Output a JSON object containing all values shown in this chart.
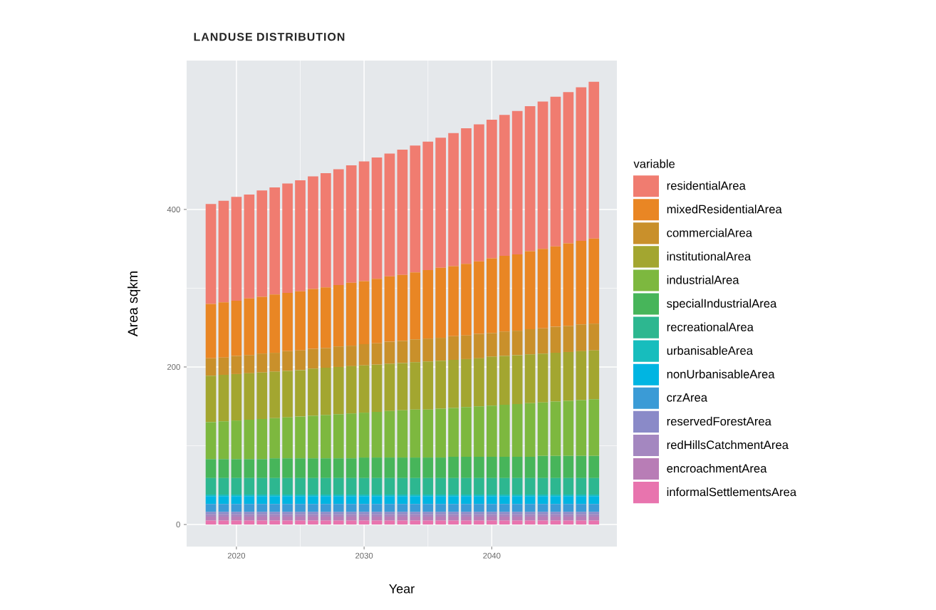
{
  "chart_data": {
    "type": "bar",
    "title": "LANDUSE DISTRIBUTION",
    "xlabel": "Year",
    "ylabel": "Area sqkm",
    "legend_title": "variable",
    "x": [
      2018,
      2019,
      2020,
      2021,
      2022,
      2023,
      2024,
      2025,
      2026,
      2027,
      2028,
      2029,
      2030,
      2031,
      2032,
      2033,
      2034,
      2035,
      2036,
      2037,
      2038,
      2039,
      2040,
      2041,
      2042,
      2043,
      2044,
      2045,
      2046,
      2047,
      2048
    ],
    "stacked": true,
    "series": [
      {
        "name": "informalSettlementsArea",
        "color": "#e874ae",
        "values": [
          5,
          5,
          5,
          5,
          5,
          5,
          5,
          5,
          5,
          5,
          5,
          5,
          5,
          5,
          5,
          5,
          5,
          5,
          5,
          5,
          5,
          5,
          5,
          5,
          5,
          5,
          5,
          5,
          5,
          5,
          5
        ]
      },
      {
        "name": "encroachmentArea",
        "color": "#b87db6",
        "values": [
          5,
          5,
          5,
          5,
          5,
          5,
          5,
          5,
          5,
          5,
          5,
          5,
          5,
          5,
          5,
          5,
          5,
          5,
          5,
          5,
          5,
          5,
          5,
          5,
          5,
          5,
          5,
          5,
          5,
          5,
          5
        ]
      },
      {
        "name": "redHillsCatchmentArea",
        "color": "#a487c0",
        "values": [
          3,
          3,
          3,
          3,
          3,
          3,
          3,
          3,
          3,
          3,
          3,
          3,
          3,
          3,
          3,
          3,
          3,
          3,
          3,
          3,
          3,
          3,
          3,
          3,
          3,
          3,
          3,
          3,
          3,
          3,
          3
        ]
      },
      {
        "name": "reservedForestArea",
        "color": "#8a8ac8",
        "values": [
          3,
          3,
          3,
          3,
          3,
          3,
          3,
          3,
          3,
          3,
          3,
          3,
          3,
          3,
          3,
          3,
          3,
          3,
          3,
          3,
          3,
          3,
          3,
          3,
          3,
          3,
          3,
          3,
          3,
          3,
          3
        ]
      },
      {
        "name": "crzArea",
        "color": "#3b9bd6",
        "values": [
          10,
          10,
          10,
          10,
          10,
          10,
          10,
          10,
          10,
          10,
          10,
          10,
          10,
          10,
          10,
          10,
          10,
          10,
          10,
          10,
          10,
          10,
          10,
          10,
          10,
          10,
          10,
          10,
          10,
          10,
          10
        ]
      },
      {
        "name": "nonUrbanisableArea",
        "color": "#00b5e2",
        "values": [
          10,
          10,
          10,
          10,
          10,
          10,
          10,
          10,
          10,
          10,
          10,
          10,
          10,
          10,
          10,
          10,
          10,
          10,
          10,
          10,
          10,
          10,
          10,
          10,
          10,
          10,
          10,
          10,
          10,
          10,
          10
        ]
      },
      {
        "name": "urbanisableArea",
        "color": "#17bdbd",
        "values": [
          2,
          2,
          2,
          2,
          2,
          2,
          2,
          2,
          2,
          2,
          2,
          2,
          2,
          2,
          2,
          2,
          2,
          2,
          2,
          2,
          2,
          2,
          2,
          2,
          2,
          2,
          2,
          2,
          2,
          2,
          2
        ]
      },
      {
        "name": "recreationalArea",
        "color": "#2db790",
        "values": [
          21,
          21,
          21,
          21,
          21,
          21,
          21,
          21,
          21,
          21,
          21,
          21,
          21,
          21,
          21,
          21,
          21,
          21,
          21,
          21,
          21,
          21,
          21,
          21,
          21,
          21,
          21,
          21,
          21,
          21,
          21
        ]
      },
      {
        "name": "specialIndustrialArea",
        "color": "#47b55a",
        "values": [
          24,
          24,
          24,
          24,
          24,
          25,
          25,
          25,
          25,
          25,
          25,
          25,
          26,
          26,
          26,
          26,
          26,
          26,
          26,
          27,
          27,
          27,
          27,
          27,
          27,
          27,
          28,
          28,
          28,
          28,
          28
        ]
      },
      {
        "name": "industrialArea",
        "color": "#7db83f",
        "values": [
          47,
          48,
          49,
          50,
          51,
          51,
          52,
          53,
          54,
          55,
          56,
          57,
          57,
          58,
          59,
          60,
          61,
          61,
          62,
          62,
          63,
          64,
          65,
          66,
          67,
          68,
          68,
          69,
          70,
          71,
          72
        ]
      },
      {
        "name": "institutionalArea",
        "color": "#a3a630",
        "values": [
          59,
          59,
          59,
          59,
          59,
          59,
          59,
          59,
          60,
          60,
          60,
          60,
          60,
          60,
          60,
          60,
          60,
          61,
          61,
          61,
          61,
          61,
          62,
          62,
          62,
          62,
          62,
          62,
          62,
          62,
          62
        ]
      },
      {
        "name": "commercialArea",
        "color": "#c9902b",
        "values": [
          22,
          22,
          23,
          23,
          24,
          24,
          25,
          25,
          25,
          25,
          26,
          26,
          27,
          27,
          28,
          28,
          29,
          29,
          29,
          30,
          30,
          31,
          30,
          31,
          31,
          32,
          32,
          33,
          33,
          34,
          34
        ]
      },
      {
        "name": "mixedResidentialArea",
        "color": "#e98624",
        "values": [
          69,
          70,
          70,
          72,
          72,
          74,
          74,
          75,
          76,
          77,
          78,
          80,
          80,
          82,
          83,
          84,
          85,
          87,
          89,
          89,
          91,
          92,
          95,
          96,
          97,
          99,
          101,
          102,
          105,
          106,
          108
        ]
      },
      {
        "name": "residentialArea",
        "color": "#f07c70",
        "values": [
          127,
          129,
          132,
          132,
          135,
          136,
          139,
          141,
          143,
          145,
          147,
          149,
          152,
          154,
          156,
          159,
          161,
          163,
          165,
          169,
          172,
          174,
          176,
          179,
          182,
          184,
          187,
          190,
          192,
          195,
          199
        ]
      }
    ],
    "xlim": [
      2016.1,
      2049.8
    ],
    "ylim": [
      -28,
      589
    ],
    "xticks": [
      2020,
      2030,
      2040
    ],
    "yticks": [
      0,
      200,
      400
    ],
    "grid": true,
    "legend": "right"
  }
}
